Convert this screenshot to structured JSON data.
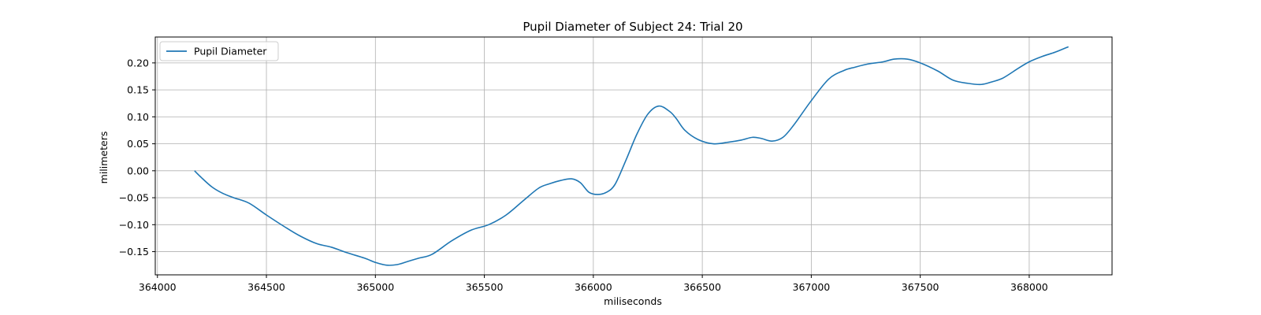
{
  "chart_data": {
    "type": "line",
    "title": "Pupil Diameter of Subject 24: Trial 20",
    "xlabel": "miliseconds",
    "ylabel": "milimeters",
    "xlim": [
      363990,
      368380
    ],
    "ylim": [
      -0.193,
      0.248
    ],
    "x_ticks": [
      364000,
      364500,
      365000,
      365500,
      366000,
      366500,
      367000,
      367500,
      368000
    ],
    "x_tick_labels": [
      "364000",
      "364500",
      "365000",
      "365500",
      "366000",
      "366500",
      "367000",
      "367500",
      "368000"
    ],
    "y_ticks": [
      -0.15,
      -0.1,
      -0.05,
      0.0,
      0.05,
      0.1,
      0.15,
      0.2
    ],
    "y_tick_labels": [
      "−0.15",
      "−0.10",
      "−0.05",
      "0.00",
      "0.05",
      "0.10",
      "0.15",
      "0.20"
    ],
    "grid": true,
    "legend_position": "top-left",
    "colors": {
      "series": "#1f77b4",
      "grid": "#b0b0b0"
    },
    "series": [
      {
        "name": "Pupil Diameter",
        "x": [
          364170,
          364200,
          364250,
          364300,
          364350,
          364420,
          364500,
          364580,
          364650,
          364730,
          364800,
          364870,
          364950,
          365000,
          365050,
          365100,
          365150,
          365200,
          365260,
          365350,
          365440,
          365520,
          365600,
          365680,
          365750,
          365800,
          365850,
          365900,
          365940,
          365980,
          366020,
          366060,
          366100,
          366150,
          366200,
          366250,
          366300,
          366350,
          366380,
          366420,
          366480,
          366550,
          366620,
          366680,
          366730,
          366770,
          366820,
          366870,
          366920,
          367000,
          367080,
          367150,
          367200,
          367260,
          367330,
          367380,
          367440,
          367500,
          367580,
          367650,
          367720,
          367780,
          367830,
          367880,
          367950,
          368000,
          368060,
          368120,
          368180
        ],
        "values": [
          0.0,
          -0.012,
          -0.03,
          -0.042,
          -0.05,
          -0.06,
          -0.082,
          -0.103,
          -0.12,
          -0.135,
          -0.142,
          -0.152,
          -0.162,
          -0.17,
          -0.175,
          -0.174,
          -0.168,
          -0.162,
          -0.155,
          -0.13,
          -0.11,
          -0.1,
          -0.082,
          -0.055,
          -0.032,
          -0.024,
          -0.018,
          -0.015,
          -0.022,
          -0.04,
          -0.044,
          -0.04,
          -0.025,
          0.02,
          0.068,
          0.105,
          0.12,
          0.11,
          0.097,
          0.075,
          0.058,
          0.05,
          0.053,
          0.057,
          0.062,
          0.06,
          0.055,
          0.062,
          0.085,
          0.13,
          0.17,
          0.186,
          0.192,
          0.198,
          0.202,
          0.207,
          0.207,
          0.2,
          0.185,
          0.168,
          0.162,
          0.16,
          0.165,
          0.172,
          0.19,
          0.202,
          0.212,
          0.22,
          0.23
        ]
      }
    ]
  }
}
